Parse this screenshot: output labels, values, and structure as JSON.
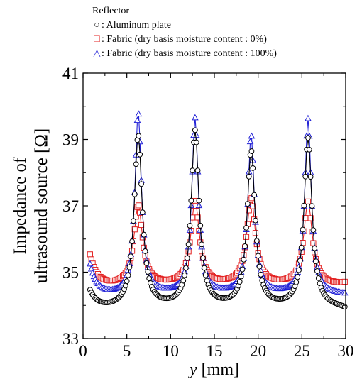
{
  "chart_data": {
    "type": "scatter",
    "xlabel_italic": "y",
    "xlabel_unit": "[mm]",
    "ylabel_line1": "Impedance of",
    "ylabel_line2": "ultrasound source [Ω]",
    "xlim": [
      0,
      30
    ],
    "ylim": [
      33,
      41
    ],
    "x_ticks": [
      "0",
      "5",
      "10",
      "15",
      "20",
      "25",
      "30"
    ],
    "y_ticks": [
      "33",
      "35",
      "37",
      "39",
      "41"
    ],
    "grid": false,
    "legend_position": "top",
    "legend_title": "Reflector",
    "series": [
      {
        "name": ": Aluminum plate",
        "marker": "○",
        "color": "#000000",
        "base": 33.9,
        "peak_heights": [
          5.2,
          5.3,
          4.7,
          5.1
        ],
        "widths": [
          0.55,
          0.55,
          0.55,
          0.55
        ],
        "start_value": 34.4,
        "end_value": 33.8
      },
      {
        "name": ": Fabric (dry basis moisture content : 0%)",
        "marker": "□",
        "color": "#e32222",
        "base": 34.6,
        "peak_heights": [
          2.4,
          2.5,
          2.6,
          2.5
        ],
        "widths": [
          0.6,
          0.6,
          0.6,
          0.6
        ],
        "start_value": 35.5,
        "end_value": 34.7
      },
      {
        "name": ": Fabric (dry basis moisture content : 100%)",
        "marker": "△",
        "color": "#1f1fd6",
        "base": 34.3,
        "peak_heights": [
          5.5,
          5.3,
          4.8,
          5.3
        ],
        "widths": [
          0.45,
          0.45,
          0.45,
          0.45
        ],
        "start_value": 35.2,
        "end_value": 34.3
      }
    ],
    "peak_x": [
      6.3,
      12.8,
      19.2,
      25.7
    ],
    "x_start": 0.8,
    "x_end": 29.9,
    "x_step": 0.15
  }
}
